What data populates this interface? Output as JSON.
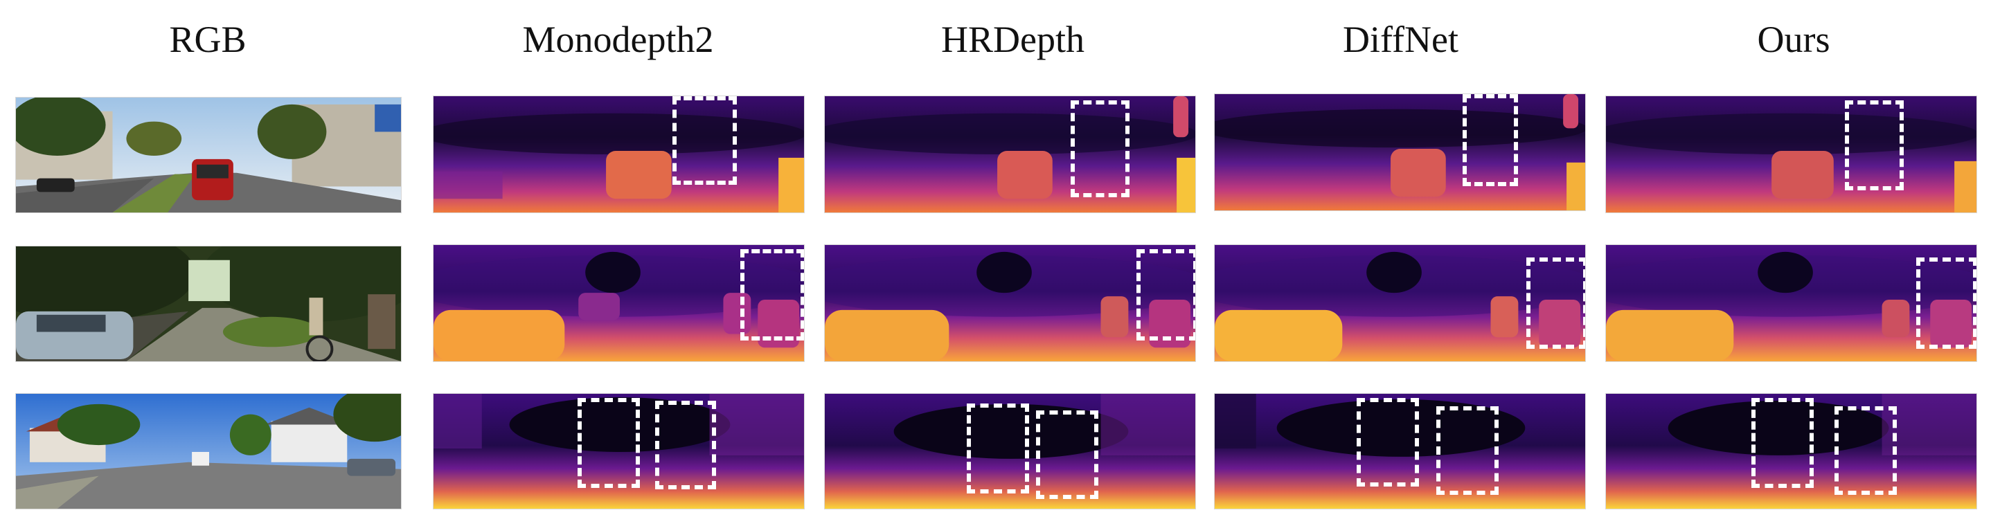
{
  "figure": {
    "columns": [
      {
        "key": "rgb",
        "title": "RGB"
      },
      {
        "key": "monodepth2",
        "title": "Monodepth2"
      },
      {
        "key": "hrdepth",
        "title": "HRDepth"
      },
      {
        "key": "diffnet",
        "title": "DiffNet"
      },
      {
        "key": "ours",
        "title": "Ours"
      }
    ],
    "rows": [
      {
        "key": "row1",
        "scene": "street-with-red-car"
      },
      {
        "key": "row2",
        "scene": "street-with-cyclist"
      },
      {
        "key": "row3",
        "scene": "residential-road"
      }
    ],
    "colormap": [
      "#0d0887",
      "#3b049a",
      "#6a00a8",
      "#b12a90",
      "#e16462",
      "#fca636",
      "#f0f921"
    ]
  }
}
